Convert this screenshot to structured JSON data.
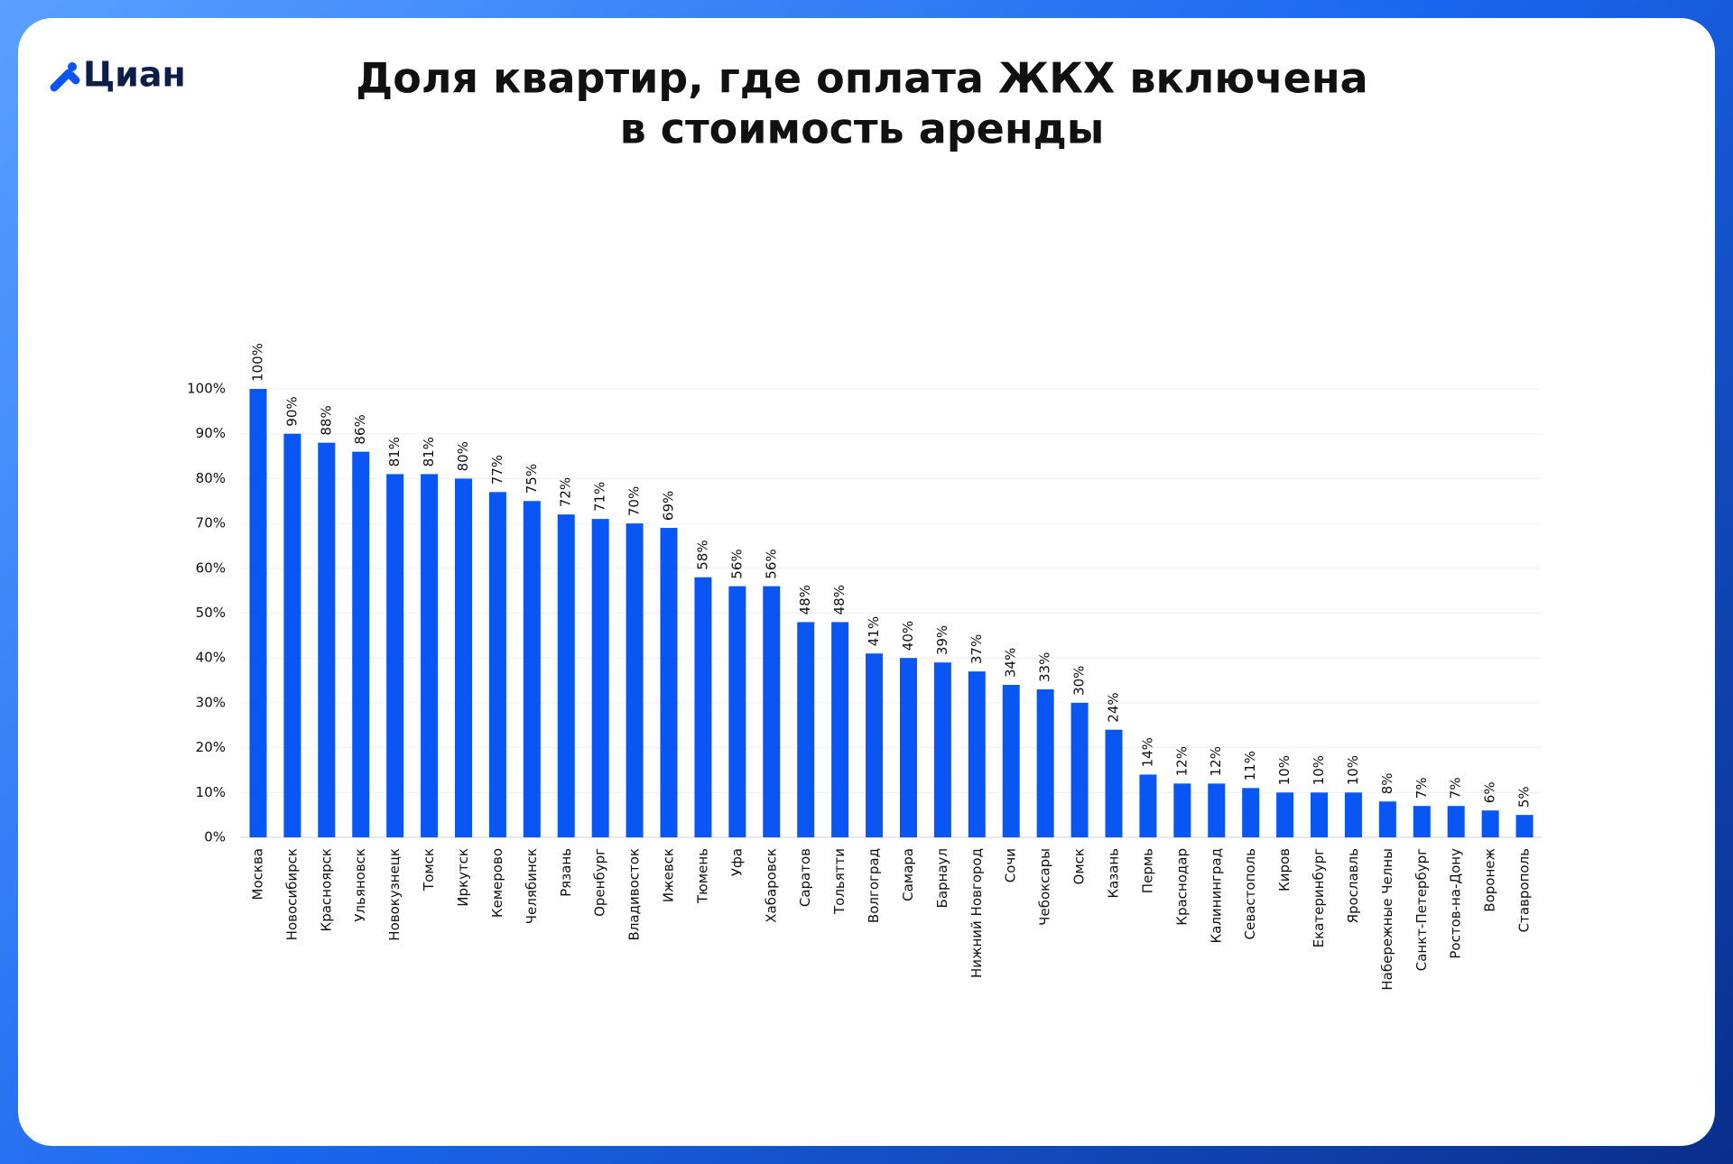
{
  "logo": "Циан",
  "chart_data": {
    "type": "bar",
    "title": [
      "Доля квартир, где оплата ЖКХ включена",
      "в стоимость аренды"
    ],
    "categories": [
      "Москва",
      "Новосибирск",
      "Красноярск",
      "Ульяновск",
      "Новокузнецк",
      "Томск",
      "Иркутск",
      "Кемерово",
      "Челябинск",
      "Рязань",
      "Оренбург",
      "Владивосток",
      "Ижевск",
      "Тюмень",
      "Уфа",
      "Хабаровск",
      "Саратов",
      "Тольятти",
      "Волгоград",
      "Самара",
      "Барнаул",
      "Нижний Новгород",
      "Сочи",
      "Чебоксары",
      "Омск",
      "Казань",
      "Пермь",
      "Краснодар",
      "Калининград",
      "Севастополь",
      "Киров",
      "Екатеринбург",
      "Ярославль",
      "Набережные Челны",
      "Санкт-Петербург",
      "Ростов-на-Дону",
      "Воронеж",
      "Ставрополь"
    ],
    "values": [
      100,
      90,
      88,
      86,
      81,
      81,
      80,
      77,
      75,
      72,
      71,
      70,
      69,
      58,
      56,
      56,
      48,
      48,
      41,
      40,
      39,
      37,
      34,
      33,
      30,
      24,
      14,
      12,
      12,
      11,
      10,
      10,
      10,
      8,
      7,
      7,
      6,
      5
    ],
    "value_labels": [
      "100%",
      "90%",
      "88%",
      "86%",
      "81%",
      "81%",
      "80%",
      "77%",
      "75%",
      "72%",
      "71%",
      "70%",
      "69%",
      "58%",
      "56%",
      "56%",
      "48%",
      "48%",
      "41%",
      "40%",
      "39%",
      "37%",
      "34%",
      "33%",
      "30%",
      "24%",
      "14%",
      "12%",
      "12%",
      "11%",
      "10%",
      "10%",
      "10%",
      "8%",
      "7%",
      "7%",
      "6%",
      "5%"
    ],
    "color": "#0a56f5",
    "ylim": [
      0,
      100
    ],
    "yticks": [
      {
        "value": 0,
        "label": "0%"
      },
      {
        "value": 10,
        "label": "10%"
      },
      {
        "value": 20,
        "label": "20%"
      },
      {
        "value": 30,
        "label": "30%"
      },
      {
        "value": 40,
        "label": "40%"
      },
      {
        "value": 50,
        "label": "50%"
      },
      {
        "value": 60,
        "label": "60%"
      },
      {
        "value": 70,
        "label": "70%"
      },
      {
        "value": 80,
        "label": "80%"
      },
      {
        "value": 90,
        "label": "90%"
      },
      {
        "value": 100,
        "label": "100%"
      }
    ],
    "grid": true
  }
}
